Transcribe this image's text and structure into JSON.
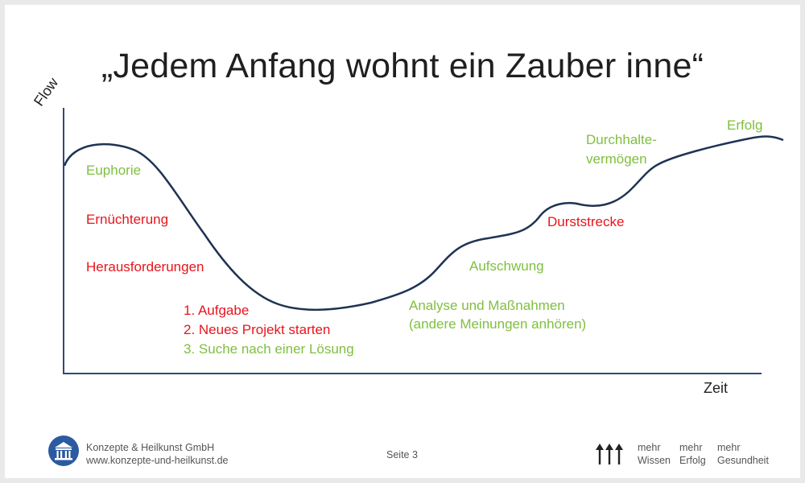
{
  "title": "„Jedem Anfang wohnt ein Zauber inne“",
  "axes": {
    "y_label": "Flow",
    "x_label": "Zeit"
  },
  "stages": {
    "euphorie": "Euphorie",
    "ernuechterung": "Ernüchterung",
    "herausforderungen": "Herausforderungen",
    "aufgabe": "1. Aufgabe",
    "neues_projekt": "2. Neues Projekt starten",
    "suche": "3. Suche nach einer Lösung",
    "analyse_1": "Analyse und Maßnahmen",
    "analyse_2": "(andere Meinungen anhören)",
    "aufschwung": "Aufschwung",
    "durststrecke": "Durststrecke",
    "durchhalte_1": "Durchhalte-",
    "durchhalte_2": "vermögen",
    "erfolg": "Erfolg"
  },
  "colors": {
    "curve": "#1e3354",
    "positive": "#7fbf3f",
    "negative": "#e8141b"
  },
  "footer": {
    "company": "Konzepte & Heilkunst GmbH",
    "website": "www.konzepte-und-heilkunst.de",
    "page": "Seite 3",
    "tagline_prefix": "mehr",
    "tagline_items": [
      "Wissen",
      "Erfolg",
      "Gesundheit"
    ],
    "logo_icon": "temple-icon",
    "arrows_icon": "three-up-arrows-icon"
  }
}
